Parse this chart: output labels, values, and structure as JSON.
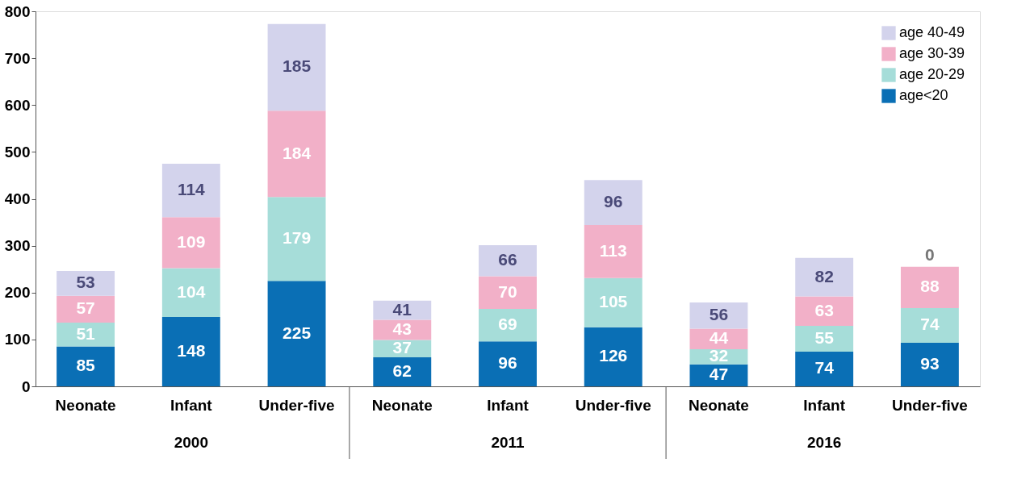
{
  "chart_data": {
    "type": "bar",
    "stacked": true,
    "categories": [
      "Neonate",
      "Infant",
      "Under-five",
      "Neonate",
      "Infant",
      "Under-five",
      "Neonate",
      "Infant",
      "Under-five"
    ],
    "series": [
      {
        "name": "age<20",
        "color": "#0a6fb5",
        "values": [
          85,
          148,
          225,
          62,
          96,
          126,
          47,
          74,
          93
        ]
      },
      {
        "name": "age 20-29",
        "color": "#a6ddd9",
        "values": [
          51,
          104,
          179,
          37,
          69,
          105,
          32,
          55,
          74
        ]
      },
      {
        "name": "age 30-39",
        "color": "#f2b0c8",
        "values": [
          57,
          109,
          184,
          43,
          70,
          113,
          44,
          63,
          88
        ]
      },
      {
        "name": "age 40-49",
        "color": "#d3d3ec",
        "values": [
          53,
          114,
          185,
          41,
          66,
          96,
          56,
          82,
          0
        ]
      }
    ],
    "annotations": [
      "2000",
      "2011",
      "2016"
    ],
    "ylim": [
      0,
      800
    ],
    "yticks": [
      0,
      100,
      200,
      300,
      400,
      500,
      600,
      700,
      800
    ],
    "grid": false,
    "legend": "top right",
    "data_labels": true
  }
}
